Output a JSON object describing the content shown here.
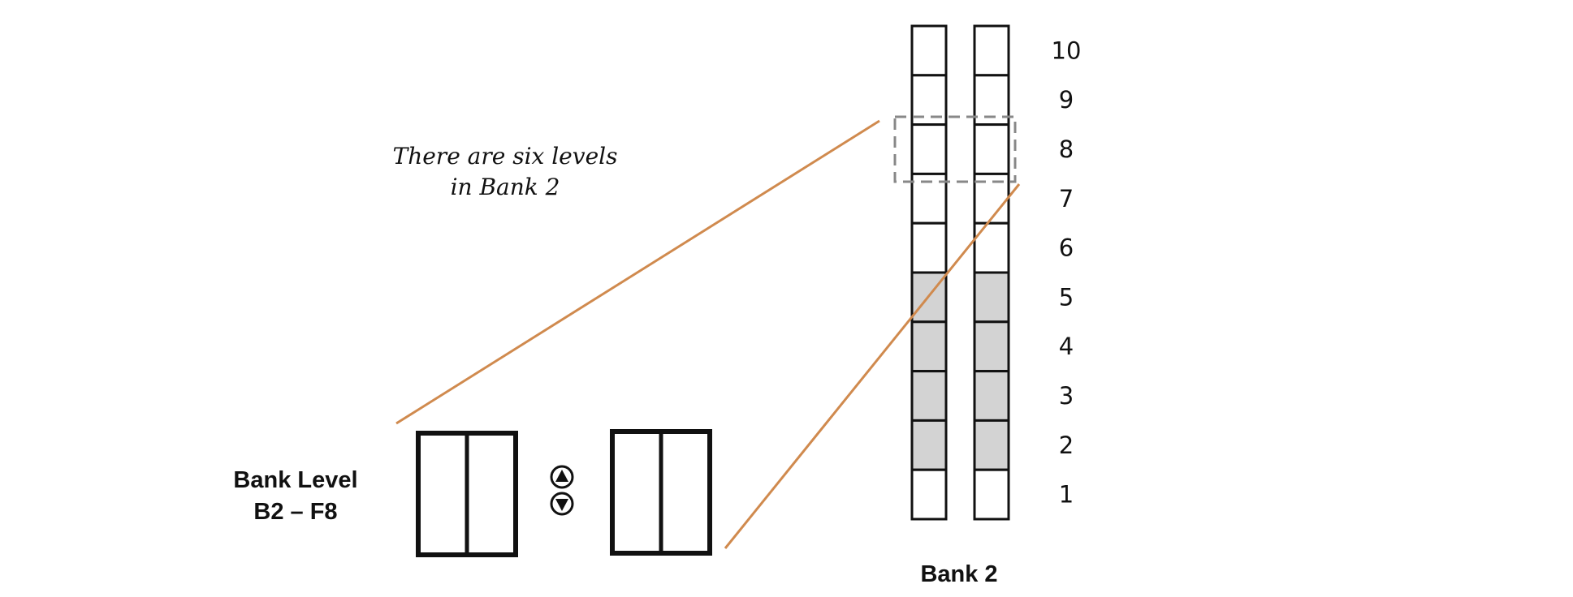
{
  "annotation": {
    "line1": "There are six levels",
    "line2": "in Bank 2"
  },
  "bank_level_label": {
    "line1": "Bank Level",
    "line2": "B2 – F8"
  },
  "bank_label": "Bank 2",
  "floors": [
    "1",
    "2",
    "3",
    "4",
    "5",
    "6",
    "7",
    "8",
    "9",
    "10"
  ],
  "shaded_floors": [
    2,
    3,
    4,
    5
  ],
  "highlighted_floor": 8,
  "colors": {
    "shaded": "#d3d3d3",
    "connector": "#d08a4e",
    "highlight_box": "#888888",
    "outline": "#111111"
  },
  "icons": [
    "up-arrow-icon",
    "down-arrow-icon"
  ]
}
